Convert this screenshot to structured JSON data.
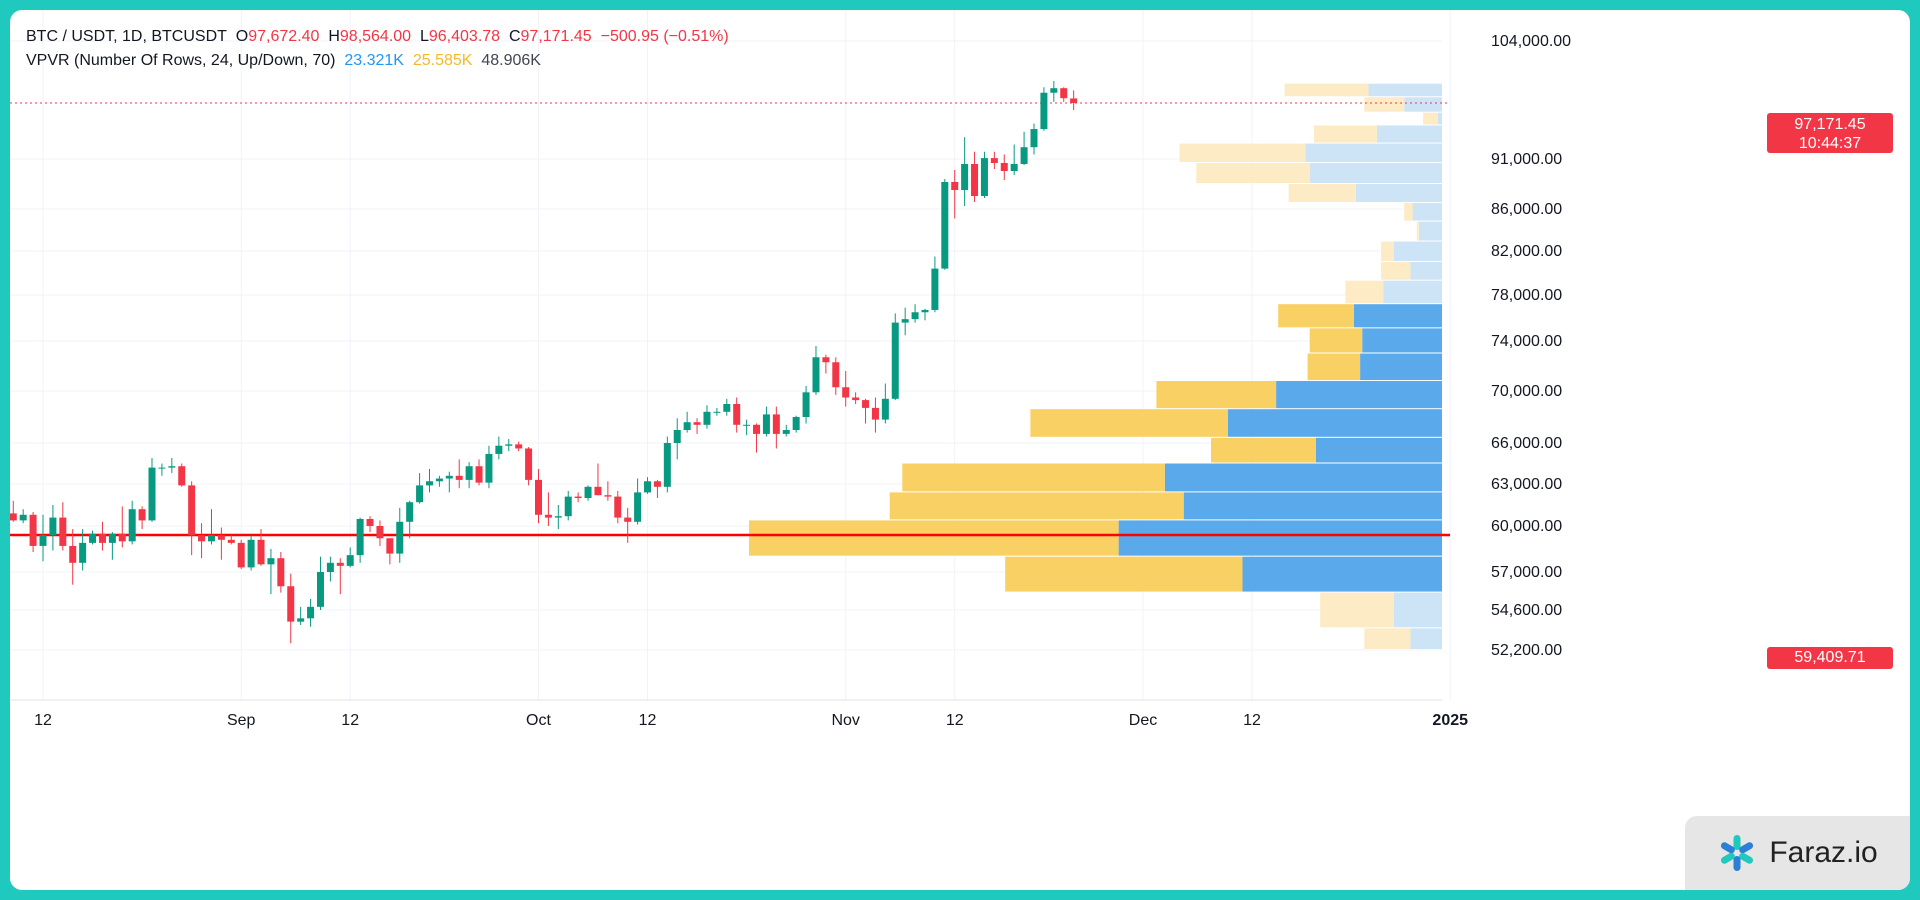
{
  "header": {
    "symbol": "BTC / USDT, 1D, BTCUSDT",
    "o_label": "O",
    "o_value": "97,672.40",
    "h_label": "H",
    "h_value": "98,564.00",
    "l_label": "L",
    "l_value": "96,403.78",
    "c_label": "C",
    "c_value": "97,171.45",
    "change": "−500.95 (−0.51%)"
  },
  "indicator": {
    "name": "VPVR (Number Of Rows, 24, Up/Down, 70)",
    "up_volume": "23.321K",
    "down_volume": "25.585K",
    "total_volume": "48.906K"
  },
  "last_price": {
    "price": "97,171.45",
    "countdown": "10:44:37"
  },
  "horizontal_line": {
    "price": "59,409.71",
    "value": 59409.71
  },
  "watermark": {
    "text": "Faraz.io",
    "icon": "asterisk-logo-icon"
  },
  "colors": {
    "up": "#089981",
    "down": "#f23645",
    "vp_up": "#5aaaeb",
    "vp_down": "#f9d063",
    "vp_up_light": "#cde4f7",
    "vp_down_light": "#fcebc5",
    "grid": "#f0f3fa"
  },
  "chart_data": {
    "type": "candlestick",
    "symbol": "BTC / USDT",
    "timeframe": "1D",
    "y_ticks": [
      104000,
      91000,
      86000,
      82000,
      78000,
      74000,
      70000,
      66000,
      63000,
      60000,
      57000,
      54600,
      52200
    ],
    "y_tick_labels": [
      "104,000.00",
      "91,000.00",
      "86,000.00",
      "82,000.00",
      "78,000.00",
      "74,000.00",
      "70,000.00",
      "66,000.00",
      "63,000.00",
      "60,000.00",
      "57,000.00",
      "54,600.00",
      "52,200.00"
    ],
    "x_ticks": [
      {
        "label": "12",
        "date": "2024-08-12"
      },
      {
        "label": "Sep",
        "date": "2024-09-01"
      },
      {
        "label": "12",
        "date": "2024-09-12"
      },
      {
        "label": "Oct",
        "date": "2024-10-01"
      },
      {
        "label": "12",
        "date": "2024-10-12"
      },
      {
        "label": "Nov",
        "date": "2024-11-01"
      },
      {
        "label": "12",
        "date": "2024-11-12"
      },
      {
        "label": "Dec",
        "date": "2024-12-01"
      },
      {
        "label": "12",
        "date": "2024-12-12"
      },
      {
        "label": "2025",
        "date": "2025-01-01"
      }
    ],
    "candles": [
      {
        "date": "2024-08-09",
        "o": 60900,
        "h": 61800,
        "l": 60300,
        "c": 60400
      },
      {
        "date": "2024-08-10",
        "o": 60400,
        "h": 61200,
        "l": 60200,
        "c": 60800
      },
      {
        "date": "2024-08-11",
        "o": 60800,
        "h": 61000,
        "l": 58300,
        "c": 58700
      },
      {
        "date": "2024-08-12",
        "o": 58700,
        "h": 60800,
        "l": 57700,
        "c": 59400
      },
      {
        "date": "2024-08-13",
        "o": 59400,
        "h": 61500,
        "l": 58400,
        "c": 60600
      },
      {
        "date": "2024-08-14",
        "o": 60600,
        "h": 61700,
        "l": 58400,
        "c": 58700
      },
      {
        "date": "2024-08-15",
        "o": 58700,
        "h": 59800,
        "l": 56200,
        "c": 57600
      },
      {
        "date": "2024-08-16",
        "o": 57600,
        "h": 59800,
        "l": 57100,
        "c": 58900
      },
      {
        "date": "2024-08-17",
        "o": 58900,
        "h": 59700,
        "l": 58800,
        "c": 59500
      },
      {
        "date": "2024-08-18",
        "o": 59500,
        "h": 60300,
        "l": 58400,
        "c": 58900
      },
      {
        "date": "2024-08-19",
        "o": 58900,
        "h": 59600,
        "l": 57800,
        "c": 59500
      },
      {
        "date": "2024-08-20",
        "o": 59500,
        "h": 61400,
        "l": 58600,
        "c": 59000
      },
      {
        "date": "2024-08-21",
        "o": 59000,
        "h": 61800,
        "l": 58800,
        "c": 61200
      },
      {
        "date": "2024-08-22",
        "o": 61200,
        "h": 61400,
        "l": 59800,
        "c": 60400
      },
      {
        "date": "2024-08-23",
        "o": 60400,
        "h": 64900,
        "l": 60300,
        "c": 64200
      },
      {
        "date": "2024-08-24",
        "o": 64200,
        "h": 64500,
        "l": 63600,
        "c": 64200
      },
      {
        "date": "2024-08-25",
        "o": 64200,
        "h": 64900,
        "l": 63800,
        "c": 64300
      },
      {
        "date": "2024-08-26",
        "o": 64300,
        "h": 64500,
        "l": 62800,
        "c": 62900
      },
      {
        "date": "2024-08-27",
        "o": 62900,
        "h": 63200,
        "l": 58100,
        "c": 59400
      },
      {
        "date": "2024-08-28",
        "o": 59400,
        "h": 60200,
        "l": 57900,
        "c": 59000
      },
      {
        "date": "2024-08-29",
        "o": 59000,
        "h": 61200,
        "l": 58800,
        "c": 59400
      },
      {
        "date": "2024-08-30",
        "o": 59400,
        "h": 59900,
        "l": 57800,
        "c": 59100
      },
      {
        "date": "2024-08-31",
        "o": 59100,
        "h": 59400,
        "l": 58800,
        "c": 58900
      },
      {
        "date": "2024-09-01",
        "o": 58900,
        "h": 59100,
        "l": 57200,
        "c": 57300
      },
      {
        "date": "2024-09-02",
        "o": 57300,
        "h": 59400,
        "l": 57100,
        "c": 59100
      },
      {
        "date": "2024-09-03",
        "o": 59100,
        "h": 59800,
        "l": 57400,
        "c": 57500
      },
      {
        "date": "2024-09-04",
        "o": 57500,
        "h": 58500,
        "l": 55600,
        "c": 57900
      },
      {
        "date": "2024-09-05",
        "o": 57900,
        "h": 58300,
        "l": 55700,
        "c": 56100
      },
      {
        "date": "2024-09-06",
        "o": 56100,
        "h": 56900,
        "l": 52600,
        "c": 53900
      },
      {
        "date": "2024-09-07",
        "o": 53900,
        "h": 54800,
        "l": 53700,
        "c": 54100
      },
      {
        "date": "2024-09-08",
        "o": 54100,
        "h": 55300,
        "l": 53600,
        "c": 54800
      },
      {
        "date": "2024-09-09",
        "o": 54800,
        "h": 58000,
        "l": 54600,
        "c": 57000
      },
      {
        "date": "2024-09-10",
        "o": 57000,
        "h": 58000,
        "l": 56400,
        "c": 57600
      },
      {
        "date": "2024-09-11",
        "o": 57600,
        "h": 57900,
        "l": 55600,
        "c": 57400
      },
      {
        "date": "2024-09-12",
        "o": 57400,
        "h": 58600,
        "l": 57300,
        "c": 58100
      },
      {
        "date": "2024-09-13",
        "o": 58100,
        "h": 60600,
        "l": 57600,
        "c": 60500
      },
      {
        "date": "2024-09-14",
        "o": 60500,
        "h": 60700,
        "l": 59600,
        "c": 60000
      },
      {
        "date": "2024-09-15",
        "o": 60000,
        "h": 60400,
        "l": 58700,
        "c": 59200
      },
      {
        "date": "2024-09-16",
        "o": 59200,
        "h": 59200,
        "l": 57500,
        "c": 58200
      },
      {
        "date": "2024-09-17",
        "o": 58200,
        "h": 61300,
        "l": 57600,
        "c": 60300
      },
      {
        "date": "2024-09-18",
        "o": 60300,
        "h": 61800,
        "l": 59200,
        "c": 61700
      },
      {
        "date": "2024-09-19",
        "o": 61700,
        "h": 63800,
        "l": 61600,
        "c": 62900
      },
      {
        "date": "2024-09-20",
        "o": 62900,
        "h": 64100,
        "l": 62400,
        "c": 63200
      },
      {
        "date": "2024-09-21",
        "o": 63200,
        "h": 63600,
        "l": 62800,
        "c": 63400
      },
      {
        "date": "2024-09-22",
        "o": 63400,
        "h": 63900,
        "l": 62400,
        "c": 63600
      },
      {
        "date": "2024-09-23",
        "o": 63600,
        "h": 64800,
        "l": 62700,
        "c": 63300
      },
      {
        "date": "2024-09-24",
        "o": 63300,
        "h": 64600,
        "l": 62700,
        "c": 64300
      },
      {
        "date": "2024-09-25",
        "o": 64300,
        "h": 64800,
        "l": 62900,
        "c": 63100
      },
      {
        "date": "2024-09-26",
        "o": 63100,
        "h": 65800,
        "l": 62700,
        "c": 65200
      },
      {
        "date": "2024-09-27",
        "o": 65200,
        "h": 66500,
        "l": 64800,
        "c": 65800
      },
      {
        "date": "2024-09-28",
        "o": 65800,
        "h": 66300,
        "l": 65400,
        "c": 65900
      },
      {
        "date": "2024-09-29",
        "o": 65900,
        "h": 66100,
        "l": 65400,
        "c": 65600
      },
      {
        "date": "2024-09-30",
        "o": 65600,
        "h": 65700,
        "l": 62900,
        "c": 63300
      },
      {
        "date": "2024-10-01",
        "o": 63300,
        "h": 64100,
        "l": 60200,
        "c": 60800
      },
      {
        "date": "2024-10-02",
        "o": 60800,
        "h": 62400,
        "l": 60000,
        "c": 60600
      },
      {
        "date": "2024-10-03",
        "o": 60600,
        "h": 61500,
        "l": 59800,
        "c": 60700
      },
      {
        "date": "2024-10-04",
        "o": 60700,
        "h": 62500,
        "l": 60400,
        "c": 62100
      },
      {
        "date": "2024-10-05",
        "o": 62100,
        "h": 62400,
        "l": 61700,
        "c": 62000
      },
      {
        "date": "2024-10-06",
        "o": 62000,
        "h": 62900,
        "l": 61800,
        "c": 62800
      },
      {
        "date": "2024-10-07",
        "o": 62800,
        "h": 64500,
        "l": 62200,
        "c": 62200
      },
      {
        "date": "2024-10-08",
        "o": 62200,
        "h": 63200,
        "l": 61800,
        "c": 62100
      },
      {
        "date": "2024-10-09",
        "o": 62100,
        "h": 62500,
        "l": 60200,
        "c": 60600
      },
      {
        "date": "2024-10-10",
        "o": 60600,
        "h": 61300,
        "l": 58900,
        "c": 60300
      },
      {
        "date": "2024-10-11",
        "o": 60300,
        "h": 63400,
        "l": 60100,
        "c": 62400
      },
      {
        "date": "2024-10-12",
        "o": 62400,
        "h": 63500,
        "l": 62300,
        "c": 63200
      },
      {
        "date": "2024-10-13",
        "o": 63200,
        "h": 63300,
        "l": 62000,
        "c": 62800
      },
      {
        "date": "2024-10-14",
        "o": 62800,
        "h": 66500,
        "l": 62400,
        "c": 66000
      },
      {
        "date": "2024-10-15",
        "o": 66000,
        "h": 67900,
        "l": 64800,
        "c": 67000
      },
      {
        "date": "2024-10-16",
        "o": 67000,
        "h": 68400,
        "l": 66800,
        "c": 67600
      },
      {
        "date": "2024-10-17",
        "o": 67600,
        "h": 67900,
        "l": 66700,
        "c": 67400
      },
      {
        "date": "2024-10-18",
        "o": 67400,
        "h": 68900,
        "l": 67100,
        "c": 68400
      },
      {
        "date": "2024-10-19",
        "o": 68400,
        "h": 68700,
        "l": 68100,
        "c": 68400
      },
      {
        "date": "2024-10-20",
        "o": 68400,
        "h": 69400,
        "l": 68100,
        "c": 69000
      },
      {
        "date": "2024-10-21",
        "o": 69000,
        "h": 69500,
        "l": 66800,
        "c": 67400
      },
      {
        "date": "2024-10-22",
        "o": 67400,
        "h": 67800,
        "l": 66600,
        "c": 67400
      },
      {
        "date": "2024-10-23",
        "o": 67400,
        "h": 67500,
        "l": 65300,
        "c": 66700
      },
      {
        "date": "2024-10-24",
        "o": 66700,
        "h": 68800,
        "l": 66500,
        "c": 68200
      },
      {
        "date": "2024-10-25",
        "o": 68200,
        "h": 68800,
        "l": 65600,
        "c": 66700
      },
      {
        "date": "2024-10-26",
        "o": 66700,
        "h": 67400,
        "l": 66500,
        "c": 67000
      },
      {
        "date": "2024-10-27",
        "o": 67000,
        "h": 68100,
        "l": 66800,
        "c": 68000
      },
      {
        "date": "2024-10-28",
        "o": 68000,
        "h": 70400,
        "l": 67500,
        "c": 69900
      },
      {
        "date": "2024-10-29",
        "o": 69900,
        "h": 73600,
        "l": 69700,
        "c": 72700
      },
      {
        "date": "2024-10-30",
        "o": 72700,
        "h": 72900,
        "l": 71400,
        "c": 72300
      },
      {
        "date": "2024-10-31",
        "o": 72300,
        "h": 72700,
        "l": 69700,
        "c": 70300
      },
      {
        "date": "2024-11-01",
        "o": 70300,
        "h": 71600,
        "l": 68800,
        "c": 69500
      },
      {
        "date": "2024-11-02",
        "o": 69500,
        "h": 69900,
        "l": 69000,
        "c": 69300
      },
      {
        "date": "2024-11-03",
        "o": 69300,
        "h": 69400,
        "l": 67500,
        "c": 68700
      },
      {
        "date": "2024-11-04",
        "o": 68700,
        "h": 69500,
        "l": 66800,
        "c": 67800
      },
      {
        "date": "2024-11-05",
        "o": 67800,
        "h": 70600,
        "l": 67500,
        "c": 69400
      },
      {
        "date": "2024-11-06",
        "o": 69400,
        "h": 76400,
        "l": 69300,
        "c": 75600
      },
      {
        "date": "2024-11-07",
        "o": 75600,
        "h": 76900,
        "l": 74500,
        "c": 75900
      },
      {
        "date": "2024-11-08",
        "o": 75900,
        "h": 77200,
        "l": 75600,
        "c": 76500
      },
      {
        "date": "2024-11-09",
        "o": 76500,
        "h": 76800,
        "l": 75800,
        "c": 76700
      },
      {
        "date": "2024-11-10",
        "o": 76700,
        "h": 81500,
        "l": 76500,
        "c": 80400
      },
      {
        "date": "2024-11-11",
        "o": 80400,
        "h": 89000,
        "l": 80300,
        "c": 88700
      },
      {
        "date": "2024-11-12",
        "o": 88700,
        "h": 89900,
        "l": 85100,
        "c": 87900
      },
      {
        "date": "2024-11-13",
        "o": 87900,
        "h": 93400,
        "l": 86300,
        "c": 90500
      },
      {
        "date": "2024-11-14",
        "o": 90500,
        "h": 91800,
        "l": 86700,
        "c": 87300
      },
      {
        "date": "2024-11-15",
        "o": 87300,
        "h": 91800,
        "l": 87100,
        "c": 91100
      },
      {
        "date": "2024-11-16",
        "o": 91100,
        "h": 91800,
        "l": 90000,
        "c": 90600
      },
      {
        "date": "2024-11-17",
        "o": 90600,
        "h": 91500,
        "l": 88900,
        "c": 89800
      },
      {
        "date": "2024-11-18",
        "o": 89800,
        "h": 92600,
        "l": 89400,
        "c": 90500
      },
      {
        "date": "2024-11-19",
        "o": 90500,
        "h": 94000,
        "l": 90400,
        "c": 92300
      },
      {
        "date": "2024-11-20",
        "o": 92300,
        "h": 94900,
        "l": 91500,
        "c": 94300
      },
      {
        "date": "2024-11-21",
        "o": 94300,
        "h": 98900,
        "l": 94100,
        "c": 98300
      },
      {
        "date": "2024-11-22",
        "o": 98300,
        "h": 99600,
        "l": 97300,
        "c": 98800
      },
      {
        "date": "2024-11-23",
        "o": 98800,
        "h": 98900,
        "l": 97300,
        "c": 97700
      },
      {
        "date": "2024-11-24",
        "o": 97672.4,
        "h": 98564.0,
        "l": 96403.78,
        "c": 97171.45
      }
    ],
    "volume_profile": [
      {
        "low": 52200,
        "high": 53500,
        "up": 1.5,
        "down": 2.2,
        "in_range": false
      },
      {
        "low": 53500,
        "high": 55700,
        "up": 2.3,
        "down": 3.5,
        "in_range": false
      },
      {
        "low": 55700,
        "high": 58000,
        "up": 9.5,
        "down": 11.3,
        "in_range": true
      },
      {
        "low": 58000,
        "high": 60400,
        "up": 15.4,
        "down": 17.6,
        "in_range": true
      },
      {
        "low": 60400,
        "high": 62400,
        "up": 12.3,
        "down": 14.0,
        "in_range": true
      },
      {
        "low": 62400,
        "high": 64500,
        "up": 13.2,
        "down": 12.5,
        "in_range": true
      },
      {
        "low": 64500,
        "high": 66400,
        "up": 6.0,
        "down": 5.0,
        "in_range": true
      },
      {
        "low": 66400,
        "high": 68600,
        "up": 10.2,
        "down": 9.4,
        "in_range": true
      },
      {
        "low": 68600,
        "high": 70800,
        "up": 7.9,
        "down": 5.7,
        "in_range": true
      },
      {
        "low": 70800,
        "high": 73000,
        "up": 3.9,
        "down": 2.5,
        "in_range": true
      },
      {
        "low": 73000,
        "high": 75100,
        "up": 3.8,
        "down": 2.5,
        "in_range": true
      },
      {
        "low": 75100,
        "high": 77200,
        "up": 4.2,
        "down": 3.6,
        "in_range": true
      },
      {
        "low": 77200,
        "high": 79300,
        "up": 2.8,
        "down": 1.8,
        "in_range": false
      },
      {
        "low": 79300,
        "high": 81000,
        "up": 1.5,
        "down": 1.4,
        "in_range": false
      },
      {
        "low": 81000,
        "high": 82900,
        "up": 2.3,
        "down": 0.6,
        "in_range": false
      },
      {
        "low": 82900,
        "high": 84800,
        "up": 1.1,
        "down": 0.1,
        "in_range": false
      },
      {
        "low": 84800,
        "high": 86600,
        "up": 1.4,
        "down": 0.4,
        "in_range": false
      },
      {
        "low": 86600,
        "high": 88500,
        "up": 4.1,
        "down": 3.2,
        "in_range": false
      },
      {
        "low": 88500,
        "high": 90600,
        "up": 6.3,
        "down": 5.4,
        "in_range": false
      },
      {
        "low": 90600,
        "high": 92700,
        "up": 6.5,
        "down": 6.0,
        "in_range": false
      },
      {
        "low": 92700,
        "high": 94700,
        "up": 3.1,
        "down": 3.0,
        "in_range": false
      },
      {
        "low": 94700,
        "high": 96100,
        "up": 0.2,
        "down": 0.7,
        "in_range": false
      },
      {
        "low": 96100,
        "high": 97800,
        "up": 1.8,
        "down": 1.9,
        "in_range": false
      },
      {
        "low": 97800,
        "high": 99300,
        "up": 3.5,
        "down": 4.0,
        "in_range": false
      }
    ]
  }
}
